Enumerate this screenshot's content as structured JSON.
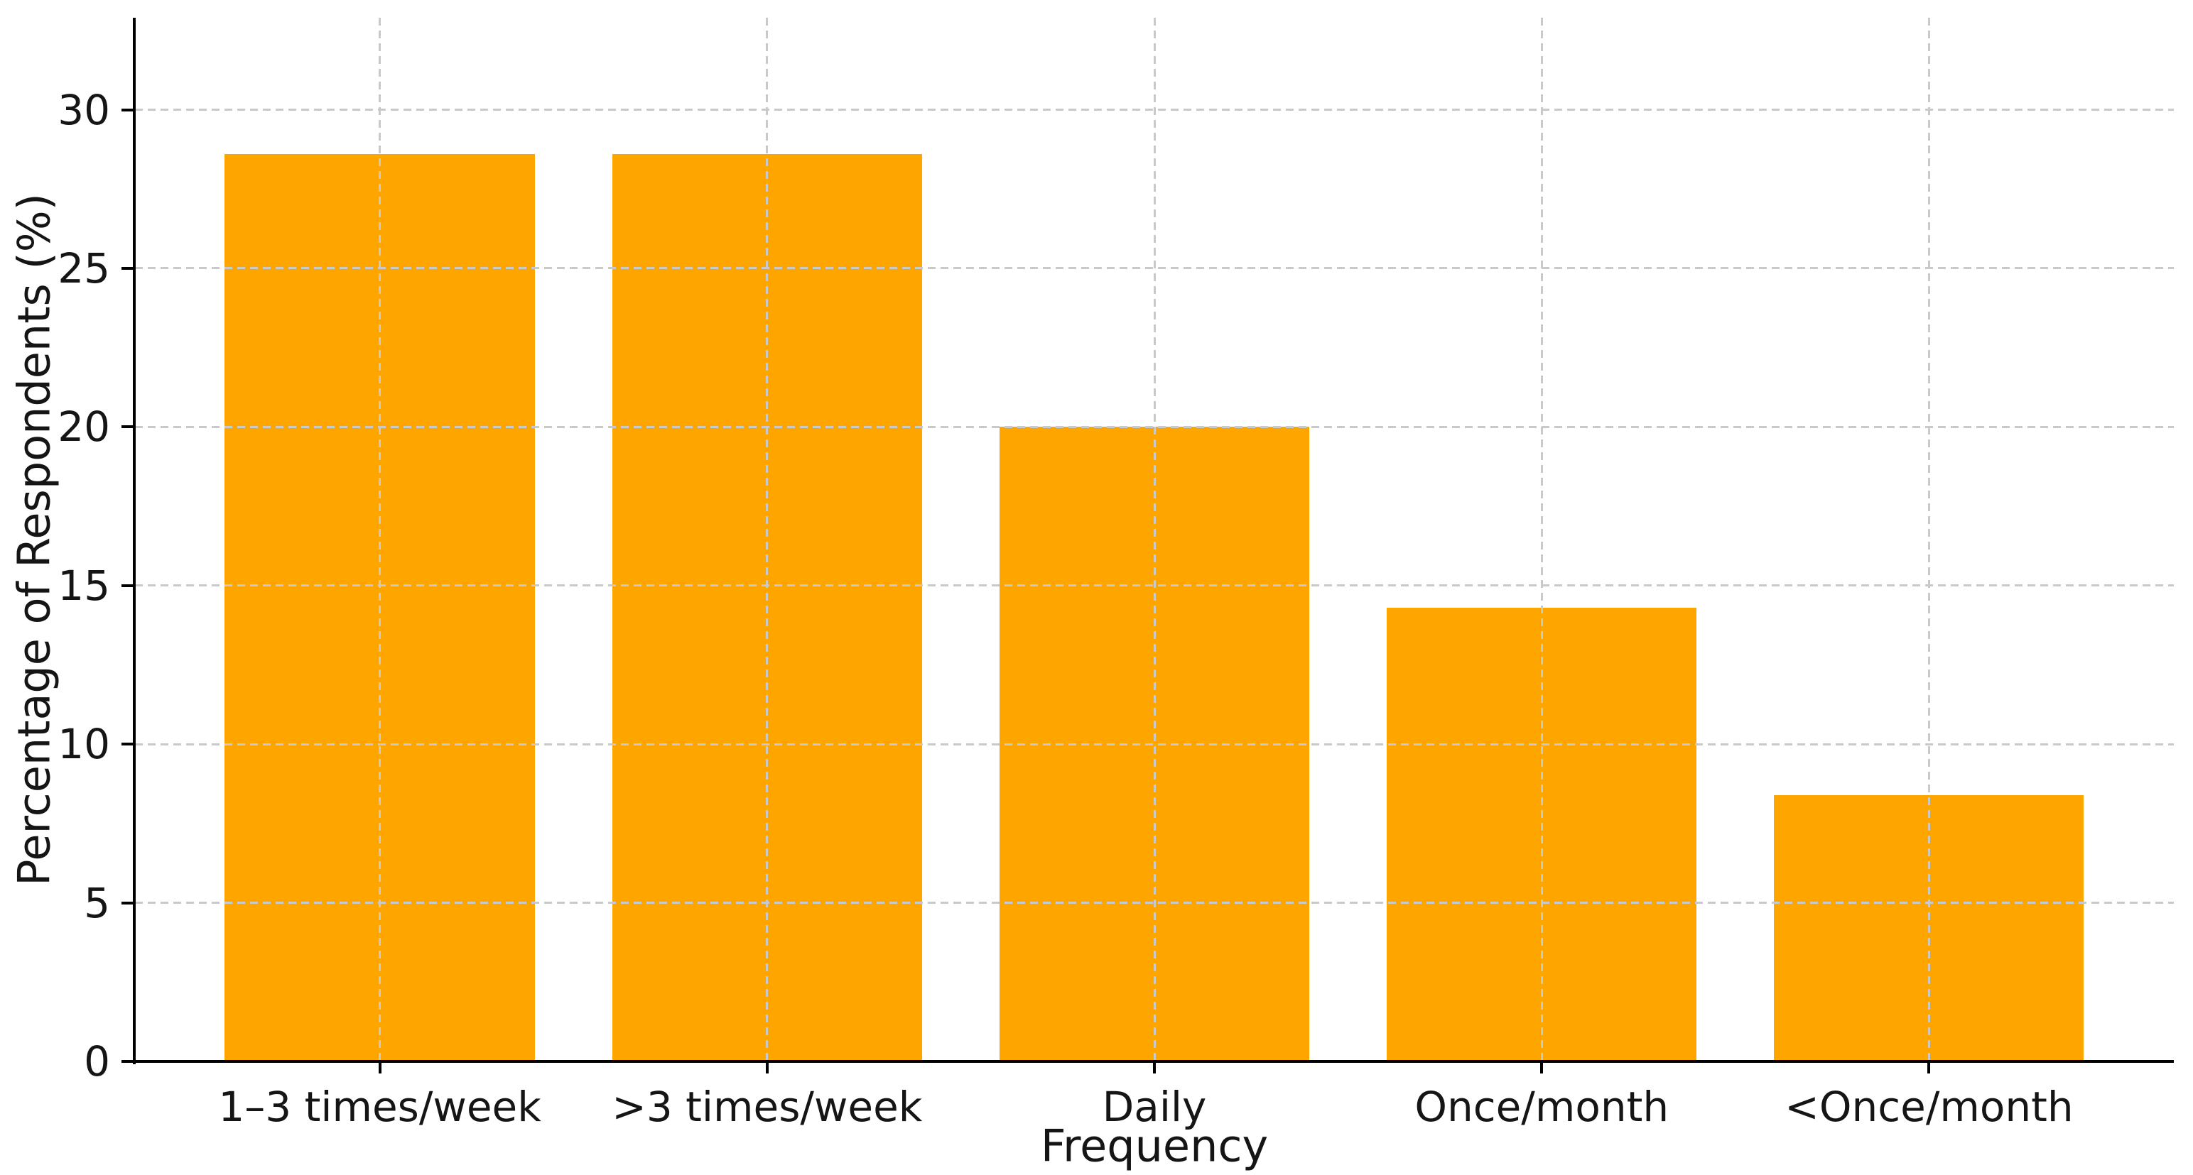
{
  "chart_data": {
    "type": "bar",
    "title": "",
    "xlabel": "Frequency",
    "ylabel": "Percentage of Respondents (%)",
    "categories": [
      "1–3 times/week",
      ">3 times/week",
      "Daily",
      "Once/month",
      "<Once/month"
    ],
    "values": [
      28.6,
      28.6,
      20.0,
      14.3,
      8.4
    ],
    "yticks": [
      0,
      5,
      10,
      15,
      20,
      25,
      30
    ],
    "ylim": [
      0,
      32.9
    ],
    "grid": true,
    "grid_axes": "both",
    "grid_style": "dashed",
    "legend": "none",
    "bar_color": "#FFA500",
    "grid_color": "#c9c9c9",
    "axis_color": "#000000",
    "text_color": "#151515",
    "background": "#ffffff"
  }
}
